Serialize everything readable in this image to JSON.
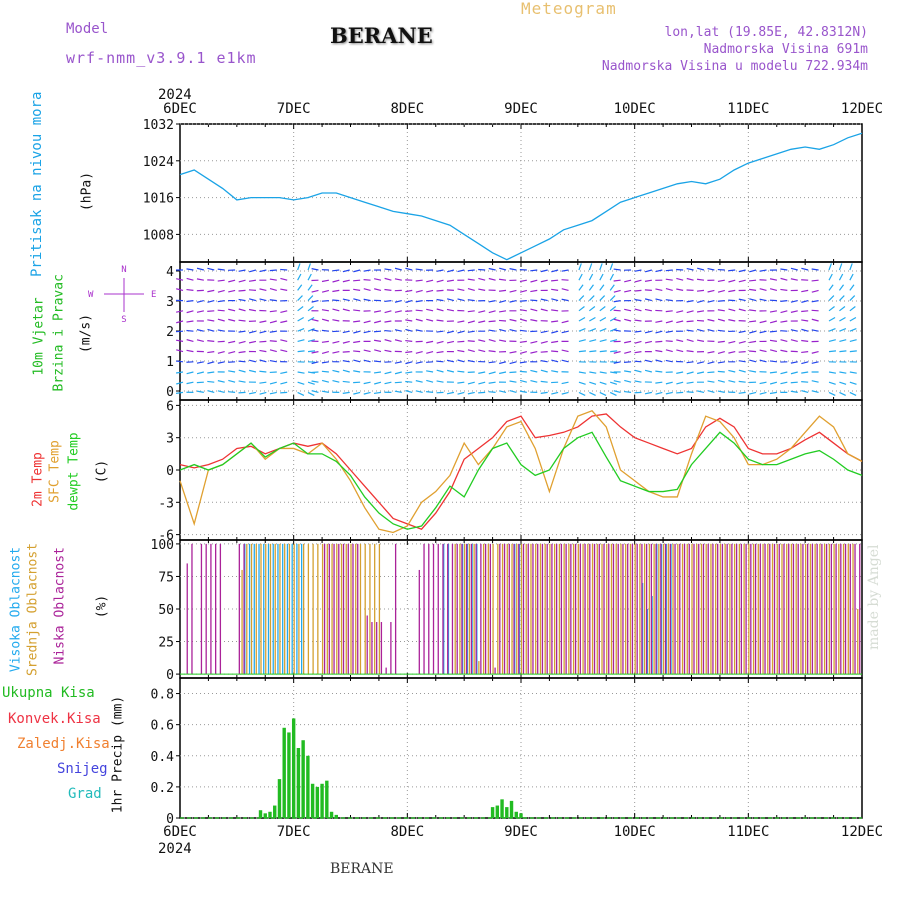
{
  "header": {
    "model_label": "Model",
    "model_name": "wrf-nmm_v3.9.1 e1km",
    "station": "BERANE",
    "product": "Meteogram",
    "lonlat": "lon,lat (19.85E, 42.8312N)",
    "elevation": "Nadmorska Visina 691m",
    "model_elevation": "Nadmorska Visina u modelu 722.934m",
    "footer_station": "BERANE",
    "credit": "made by Angel"
  },
  "colors": {
    "pressure": "#1aa3e6",
    "temp2m": "#ee3333",
    "sfc_temp": "#e0a030",
    "dewpt": "#22cc22",
    "cloud_high": "#22aaee",
    "cloud_mid": "#d4a030",
    "cloud_low": "#aa2299",
    "wind_label": "#22bb22",
    "wind_dir_label": "#aa33cc",
    "header_purple": "#9955cc",
    "header_gold": "#e8c070",
    "precip": "#22bb22"
  },
  "time_axis": {
    "year": "2024",
    "ticks": [
      "6DEC",
      "7DEC",
      "8DEC",
      "9DEC",
      "10DEC",
      "11DEC",
      "12DEC"
    ]
  },
  "panels": {
    "pressure": {
      "labels": [
        "Pritisak na nivou mora",
        "(hPa)"
      ],
      "yticks": [
        "1008",
        "1016",
        "1024",
        "1032"
      ]
    },
    "wind": {
      "labels": [
        "10m Vjetar",
        "Brzina i Pravac",
        "(m/s)"
      ],
      "compass": {
        "n": "N",
        "e": "E",
        "w": "W",
        "s": "S"
      },
      "yticks": [
        "0",
        "1",
        "2",
        "3",
        "4"
      ]
    },
    "temperature": {
      "labels": [
        "2m Temp",
        "SFC Temp",
        "dewpt Temp",
        "(C)"
      ],
      "yticks": [
        "-6",
        "-3",
        "0",
        "3",
        "6"
      ]
    },
    "clouds": {
      "labels": [
        "Visoka Oblacnost",
        "Srednja Oblacnost",
        "Niska Oblacnost",
        "(%)"
      ],
      "yticks": [
        "0",
        "25",
        "50",
        "75",
        "100"
      ]
    },
    "precip": {
      "legend": [
        "Ukupna Kisa",
        "Konvek.Kisa",
        "Zaledj.Kisa",
        "Snijeg",
        "Grad"
      ],
      "legend_colors": [
        "#22bb22",
        "#ee3344",
        "#f08030",
        "#4444dd",
        "#22bbbb"
      ],
      "axis_label": "1hr Precip (mm)",
      "yticks": [
        "0",
        "0.2",
        "0.4",
        "0.6",
        "0.8"
      ]
    }
  },
  "chart_data": [
    {
      "type": "line",
      "panel": "pressure",
      "xlabel": "",
      "ylabel": "(hPa)",
      "x_unit": "hours since 6DEC 00",
      "xlim": [
        0,
        144
      ],
      "ylim": [
        1002,
        1032
      ],
      "x": [
        0,
        3,
        6,
        9,
        12,
        15,
        18,
        21,
        24,
        27,
        30,
        33,
        36,
        39,
        42,
        45,
        48,
        51,
        54,
        57,
        60,
        63,
        66,
        69,
        72,
        75,
        78,
        81,
        84,
        87,
        90,
        93,
        96,
        99,
        102,
        105,
        108,
        111,
        114,
        117,
        120,
        123,
        126,
        129,
        132,
        135,
        138,
        141,
        144
      ],
      "series": [
        {
          "values": [
            1021,
            1022,
            1020,
            1018,
            1015.5,
            1016,
            1016,
            1016,
            1015.5,
            1016,
            1017,
            1017,
            1016,
            1015,
            1014,
            1013,
            1012.5,
            1012,
            1011,
            1010,
            1008,
            1006,
            1004,
            1002.5,
            1004,
            1005.5,
            1007,
            1009,
            1010,
            1011,
            1013,
            1015,
            1016,
            1017,
            1018,
            1019,
            1019.5,
            1019,
            1020,
            1022,
            1023.5,
            1024.5,
            1025.5,
            1026.5,
            1027,
            1026.5,
            1027.5,
            1029,
            1030
          ]
        }
      ]
    },
    {
      "type": "line",
      "panel": "temperature",
      "ylabel": "(C)",
      "x_unit": "hours since 6DEC 00",
      "xlim": [
        0,
        144
      ],
      "ylim": [
        -6.5,
        6.5
      ],
      "x": [
        0,
        3,
        6,
        9,
        12,
        15,
        18,
        21,
        24,
        27,
        30,
        33,
        36,
        39,
        42,
        45,
        48,
        51,
        54,
        57,
        60,
        63,
        66,
        69,
        72,
        75,
        78,
        81,
        84,
        87,
        90,
        93,
        96,
        99,
        102,
        105,
        108,
        111,
        114,
        117,
        120,
        123,
        126,
        129,
        132,
        135,
        138,
        141,
        144
      ],
      "series": [
        {
          "name": "2m Temp",
          "values": [
            0.5,
            0.2,
            0.5,
            1,
            2,
            2.2,
            1.5,
            2,
            2.5,
            2.2,
            2.5,
            1.5,
            0,
            -1.5,
            -3,
            -4.5,
            -5,
            -5.5,
            -4,
            -2,
            1,
            2,
            3,
            4.5,
            5,
            3,
            3.2,
            3.5,
            4,
            5,
            5.2,
            4,
            3,
            2.5,
            2,
            1.5,
            2,
            4,
            4.8,
            4,
            2,
            1.5,
            1.5,
            2,
            2.8,
            3.5,
            2.5,
            1.5,
            0.8
          ]
        },
        {
          "name": "SFC Temp",
          "values": [
            -1,
            -5,
            0,
            0.5,
            1.5,
            2.5,
            1,
            2,
            2,
            1.5,
            2.5,
            1,
            -1,
            -3.5,
            -5.5,
            -5.8,
            -5.2,
            -3,
            -2,
            -0.5,
            2.5,
            0.5,
            2,
            4,
            4.5,
            2,
            -2,
            2,
            5,
            5.5,
            4,
            0,
            -1,
            -2,
            -2.5,
            -2.5,
            1.5,
            5,
            4.5,
            3,
            0.5,
            0.5,
            1,
            2,
            3.5,
            5,
            4,
            1.5,
            0.8
          ]
        },
        {
          "name": "dewpt Temp",
          "values": [
            0,
            0.5,
            0,
            0.5,
            1.5,
            2.5,
            1.2,
            2,
            2.5,
            1.5,
            1.5,
            0.8,
            -0.5,
            -2.5,
            -4,
            -5,
            -5.5,
            -5.2,
            -3.5,
            -1.5,
            -2.5,
            0,
            2,
            2.5,
            0.5,
            -0.5,
            0,
            2,
            3,
            3.5,
            1.2,
            -1,
            -1.5,
            -2,
            -2,
            -1.8,
            0.5,
            2,
            3.5,
            2.5,
            1,
            0.5,
            0.5,
            1,
            1.5,
            1.8,
            1,
            0,
            -0.5
          ]
        }
      ]
    },
    {
      "type": "bar",
      "panel": "clouds",
      "ylabel": "(%)",
      "x_unit": "hours since 6DEC 00",
      "xlim": [
        0,
        144
      ],
      "ylim": [
        0,
        100
      ],
      "series": [
        {
          "name": "Visoka Oblacnost",
          "x": [
            14,
            15,
            16,
            17,
            18,
            19,
            20,
            21,
            22,
            23,
            24,
            25,
            26,
            56,
            57,
            60,
            61,
            62,
            63,
            71,
            72,
            98,
            99,
            100,
            101,
            102,
            103,
            104
          ],
          "values": [
            100,
            100,
            100,
            100,
            100,
            100,
            100,
            100,
            100,
            100,
            100,
            100,
            100,
            100,
            100,
            100,
            100,
            100,
            100,
            100,
            100,
            70,
            50,
            60,
            100,
            100,
            100,
            100
          ]
        },
        {
          "name": "Srednja Oblacnost",
          "x": [
            13,
            14,
            15,
            16,
            17,
            18,
            19,
            20,
            21,
            22,
            23,
            24,
            25,
            26,
            27,
            28,
            29,
            30,
            31,
            32,
            33,
            34,
            35,
            36,
            37,
            38,
            39,
            40,
            41,
            42,
            58,
            59,
            60,
            61,
            62,
            63,
            64,
            65,
            66,
            67,
            68,
            69,
            70,
            71,
            72,
            73,
            74,
            75,
            76,
            77,
            78,
            79,
            80,
            81,
            82,
            83,
            84,
            85,
            86,
            87,
            88,
            89,
            90,
            91,
            92,
            93,
            94,
            95,
            96,
            97,
            98,
            99,
            100,
            101,
            102,
            103,
            104,
            105,
            106,
            107,
            108,
            109,
            110,
            111,
            112,
            113,
            114,
            115,
            116,
            117,
            118,
            119,
            120,
            121,
            122,
            123,
            124,
            125,
            126,
            127,
            128,
            129,
            130,
            131,
            132,
            133,
            134,
            135,
            136,
            137,
            138,
            139,
            140,
            141,
            142,
            143
          ],
          "values": [
            80,
            100,
            100,
            100,
            100,
            100,
            100,
            100,
            100,
            100,
            100,
            100,
            100,
            100,
            100,
            100,
            100,
            100,
            100,
            100,
            100,
            100,
            100,
            100,
            100,
            100,
            100,
            100,
            100,
            100,
            100,
            100,
            100,
            100,
            100,
            10,
            100,
            100,
            100,
            100,
            100,
            100,
            100,
            100,
            100,
            100,
            100,
            100,
            100,
            100,
            100,
            100,
            100,
            100,
            100,
            100,
            100,
            100,
            100,
            100,
            100,
            100,
            100,
            100,
            100,
            100,
            100,
            100,
            100,
            100,
            100,
            100,
            100,
            100,
            100,
            100,
            100,
            100,
            100,
            100,
            100,
            100,
            100,
            100,
            100,
            100,
            100,
            100,
            100,
            100,
            100,
            100,
            100,
            100,
            100,
            100,
            100,
            100,
            100,
            100,
            100,
            100,
            100,
            100,
            100,
            100,
            100,
            100,
            100,
            100,
            100,
            100,
            100,
            100,
            100,
            50
          ]
        },
        {
          "name": "Niska Oblacnost",
          "x": [
            1,
            2,
            4,
            5,
            6,
            7,
            8,
            12,
            13,
            30,
            31,
            32,
            33,
            34,
            35,
            36,
            37,
            39,
            40,
            41,
            42,
            43,
            44,
            45,
            50,
            51,
            52,
            53,
            54,
            55,
            56,
            57,
            58,
            59,
            60,
            61,
            62,
            63,
            64,
            65,
            66,
            67,
            68,
            69,
            70,
            71,
            72,
            73,
            74,
            75,
            76,
            77,
            78,
            79,
            80,
            81,
            82,
            83,
            84,
            85,
            86,
            87,
            88,
            89,
            90,
            91,
            92,
            93,
            94,
            95,
            96,
            97,
            98,
            99,
            100,
            101,
            102,
            103,
            104,
            105,
            106,
            107,
            108,
            109,
            110,
            111,
            112,
            113,
            114,
            115,
            116,
            117,
            118,
            119,
            120,
            121,
            122,
            123,
            124,
            125,
            126,
            127,
            128,
            129,
            130,
            131,
            132,
            133,
            134,
            135,
            136,
            137,
            138,
            139,
            140,
            141,
            142,
            143
          ],
          "values": [
            85,
            100,
            100,
            100,
            100,
            100,
            100,
            100,
            100,
            100,
            100,
            100,
            100,
            100,
            100,
            100,
            100,
            45,
            40,
            40,
            40,
            5,
            40,
            100,
            80,
            100,
            100,
            100,
            100,
            100,
            100,
            100,
            100,
            100,
            100,
            100,
            100,
            100,
            100,
            100,
            5,
            100,
            100,
            100,
            100,
            100,
            100,
            100,
            100,
            100,
            100,
            100,
            100,
            100,
            100,
            100,
            100,
            100,
            100,
            100,
            100,
            100,
            100,
            100,
            100,
            100,
            100,
            100,
            100,
            100,
            100,
            100,
            100,
            100,
            100,
            100,
            100,
            100,
            100,
            100,
            100,
            100,
            100,
            100,
            100,
            100,
            100,
            100,
            100,
            100,
            100,
            100,
            100,
            100,
            100,
            100,
            100,
            100,
            100,
            100,
            100,
            100,
            100,
            100,
            100,
            100,
            100,
            100,
            100,
            100,
            100,
            100,
            100,
            100,
            100,
            100,
            100,
            100
          ]
        }
      ]
    },
    {
      "type": "bar",
      "panel": "precip",
      "ylabel": "1hr Precip (mm)",
      "x_unit": "hours since 6DEC 00",
      "xlim": [
        0,
        144
      ],
      "ylim": [
        0,
        0.9
      ],
      "series": [
        {
          "name": "Ukupna Kisa",
          "x": [
            17,
            18,
            19,
            20,
            21,
            22,
            23,
            24,
            25,
            26,
            27,
            28,
            29,
            30,
            31,
            32,
            33,
            66,
            67,
            68,
            69,
            70,
            71,
            72
          ],
          "values": [
            0.05,
            0.03,
            0.04,
            0.08,
            0.25,
            0.58,
            0.55,
            0.64,
            0.45,
            0.5,
            0.4,
            0.22,
            0.2,
            0.22,
            0.24,
            0.04,
            0.02,
            0.07,
            0.08,
            0.12,
            0.07,
            0.11,
            0.04,
            0.03
          ]
        }
      ]
    }
  ]
}
